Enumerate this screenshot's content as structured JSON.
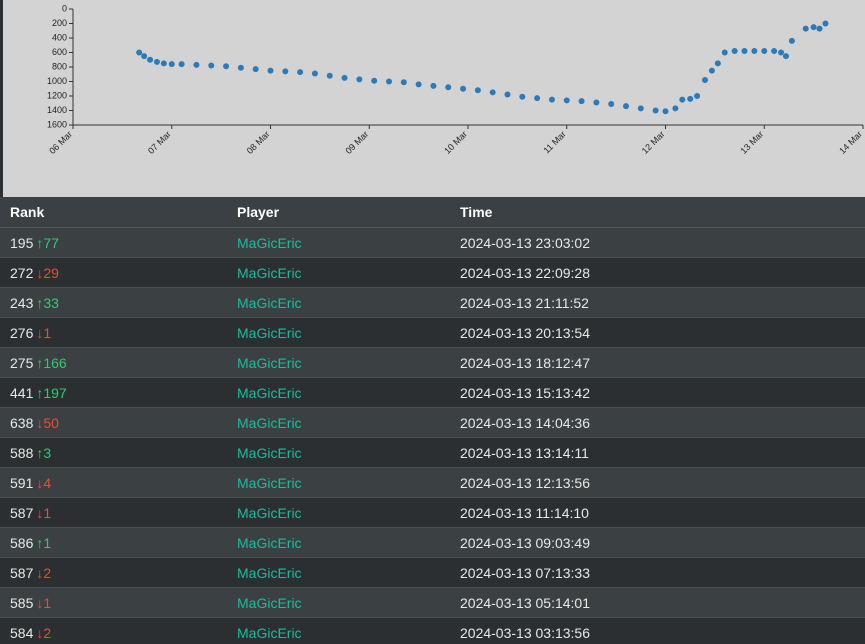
{
  "chart_data": {
    "type": "scatter",
    "color": "#2b7bba",
    "xlim": [
      6,
      14
    ],
    "xticks": [
      {
        "value": 6,
        "label": "06 Mar"
      },
      {
        "value": 7,
        "label": "07 Mar"
      },
      {
        "value": 8,
        "label": "08 Mar"
      },
      {
        "value": 9,
        "label": "09 Mar"
      },
      {
        "value": 10,
        "label": "10 Mar"
      },
      {
        "value": 11,
        "label": "11 Mar"
      },
      {
        "value": 12,
        "label": "12 Mar"
      },
      {
        "value": 13,
        "label": "13 Mar"
      },
      {
        "value": 14,
        "label": "14 Mar"
      }
    ],
    "ylim": [
      1600,
      0
    ],
    "yticks": [
      0,
      200,
      400,
      600,
      800,
      1000,
      1200,
      1400,
      1600
    ],
    "x": [
      6.67,
      6.72,
      6.78,
      6.85,
      6.92,
      7.0,
      7.1,
      7.25,
      7.4,
      7.55,
      7.7,
      7.85,
      8.0,
      8.15,
      8.3,
      8.45,
      8.6,
      8.75,
      8.9,
      9.05,
      9.2,
      9.35,
      9.5,
      9.65,
      9.8,
      9.95,
      10.1,
      10.25,
      10.4,
      10.55,
      10.7,
      10.85,
      11.0,
      11.15,
      11.3,
      11.45,
      11.6,
      11.75,
      11.9,
      12.0,
      12.1,
      12.17,
      12.25,
      12.32,
      12.4,
      12.47,
      12.53,
      12.6,
      12.7,
      12.8,
      12.9,
      13.0,
      13.1,
      13.17,
      13.22,
      13.28,
      13.42,
      13.5,
      13.56,
      13.62
    ],
    "values": [
      600,
      650,
      700,
      730,
      750,
      760,
      760,
      770,
      780,
      790,
      810,
      830,
      850,
      860,
      870,
      890,
      920,
      950,
      970,
      990,
      1000,
      1010,
      1040,
      1060,
      1080,
      1100,
      1120,
      1150,
      1180,
      1210,
      1230,
      1250,
      1260,
      1270,
      1290,
      1310,
      1340,
      1370,
      1400,
      1410,
      1370,
      1250,
      1240,
      1200,
      980,
      850,
      750,
      600,
      580,
      580,
      580,
      580,
      580,
      600,
      650,
      440,
      270,
      250,
      270,
      200
    ]
  },
  "table": {
    "headers": [
      "Rank",
      "Player",
      "Time"
    ],
    "rows": [
      {
        "rank": "195",
        "change": "↑77",
        "up": true,
        "player": "MaGicEric",
        "time": "2024-03-13 23:03:02"
      },
      {
        "rank": "272",
        "change": "↓29",
        "up": false,
        "player": "MaGicEric",
        "time": "2024-03-13 22:09:28"
      },
      {
        "rank": "243",
        "change": "↑33",
        "up": true,
        "player": "MaGicEric",
        "time": "2024-03-13 21:11:52"
      },
      {
        "rank": "276",
        "change": "↓1",
        "up": false,
        "player": "MaGicEric",
        "time": "2024-03-13 20:13:54"
      },
      {
        "rank": "275",
        "change": "↑166",
        "up": true,
        "player": "MaGicEric",
        "time": "2024-03-13 18:12:47"
      },
      {
        "rank": "441",
        "change": "↑197",
        "up": true,
        "player": "MaGicEric",
        "time": "2024-03-13 15:13:42"
      },
      {
        "rank": "638",
        "change": "↓50",
        "up": false,
        "player": "MaGicEric",
        "time": "2024-03-13 14:04:36"
      },
      {
        "rank": "588",
        "change": "↑3",
        "up": true,
        "player": "MaGicEric",
        "time": "2024-03-13 13:14:11"
      },
      {
        "rank": "591",
        "change": "↓4",
        "up": false,
        "player": "MaGicEric",
        "time": "2024-03-13 12:13:56"
      },
      {
        "rank": "587",
        "change": "↓1",
        "up": false,
        "player": "MaGicEric",
        "time": "2024-03-13 11:14:10"
      },
      {
        "rank": "586",
        "change": "↑1",
        "up": true,
        "player": "MaGicEric",
        "time": "2024-03-13 09:03:49"
      },
      {
        "rank": "587",
        "change": "↓2",
        "up": false,
        "player": "MaGicEric",
        "time": "2024-03-13 07:13:33"
      },
      {
        "rank": "585",
        "change": "↓1",
        "up": false,
        "player": "MaGicEric",
        "time": "2024-03-13 05:14:01"
      },
      {
        "rank": "584",
        "change": "↓2",
        "up": false,
        "player": "MaGicEric",
        "time": "2024-03-13 03:13:56"
      }
    ]
  }
}
